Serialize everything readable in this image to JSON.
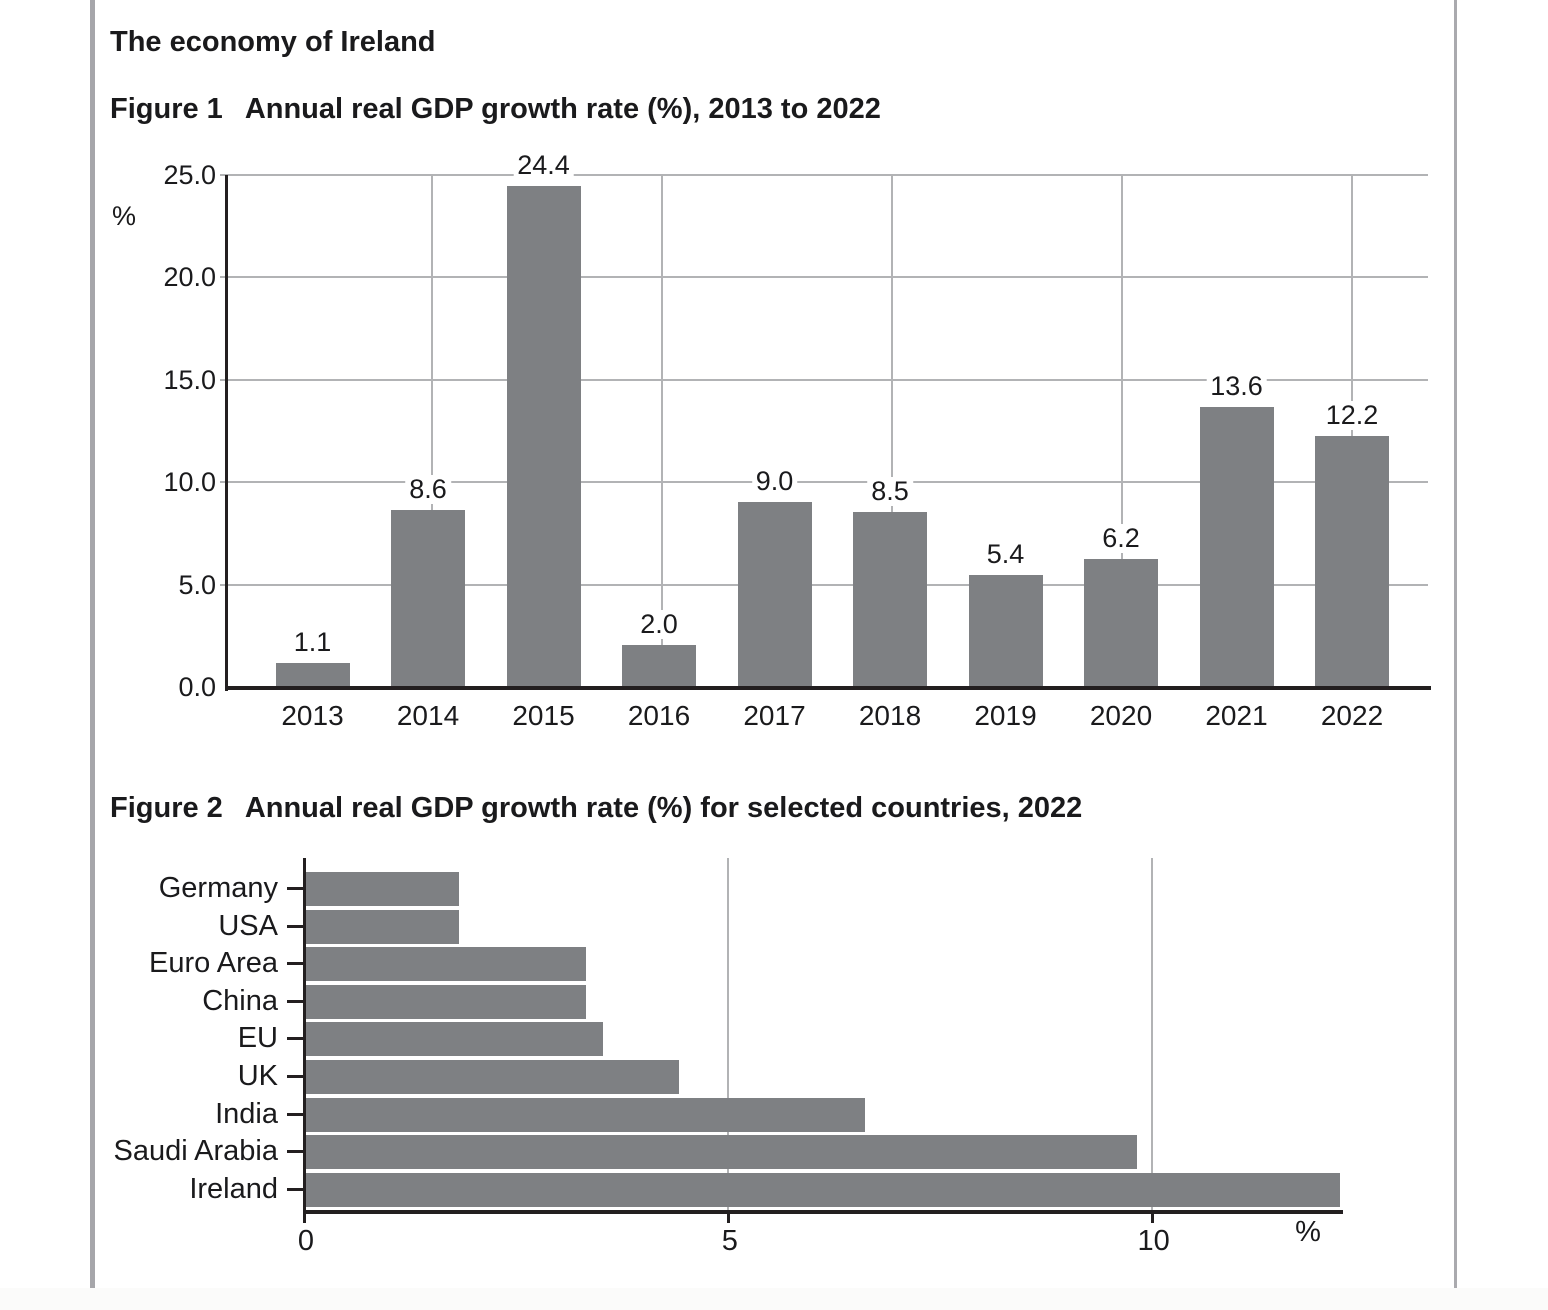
{
  "page": {
    "heading": "The economy of Ireland"
  },
  "figure1": {
    "label": "Figure 1",
    "title": "Annual real GDP growth rate (%), 2013 to 2022",
    "y_axis_unit": "%",
    "y_ticks": [
      "25.0",
      "20.0",
      "15.0",
      "10.0",
      "5.0",
      "0.0"
    ]
  },
  "figure2": {
    "label": "Figure 2",
    "title": "Annual real GDP growth rate (%) for selected countries, 2022",
    "x_axis_unit": "%",
    "x_ticks": [
      "0",
      "5",
      "10"
    ]
  },
  "colors": {
    "bar": "#7e8083",
    "gridline": "#b2b3b5",
    "axis": "#231f20",
    "page_rule": "#a6a6aa"
  },
  "chart_data": [
    {
      "type": "bar",
      "orientation": "vertical",
      "title": "Annual real GDP growth rate (%), 2013 to 2022",
      "categories": [
        "2013",
        "2014",
        "2015",
        "2016",
        "2017",
        "2018",
        "2019",
        "2020",
        "2021",
        "2022"
      ],
      "values": [
        1.1,
        8.6,
        24.4,
        2.0,
        9.0,
        8.5,
        5.4,
        6.2,
        13.6,
        12.2
      ],
      "value_labels": [
        "1.1",
        "8.6",
        "24.4",
        "2.0",
        "9.0",
        "8.5",
        "5.4",
        "6.2",
        "13.6",
        "12.2"
      ],
      "ylabel": "%",
      "ylim": [
        0,
        25
      ],
      "ytick_step": 5,
      "grid": true,
      "legend": false
    },
    {
      "type": "bar",
      "orientation": "horizontal",
      "title": "Annual real GDP growth rate (%) for selected countries, 2022",
      "categories": [
        "Germany",
        "USA",
        "Euro Area",
        "China",
        "EU",
        "UK",
        "India",
        "Saudi Arabia",
        "Ireland"
      ],
      "values": [
        1.8,
        1.8,
        3.3,
        3.3,
        3.5,
        4.4,
        6.6,
        9.8,
        12.2
      ],
      "xlabel": "%",
      "xlim": [
        0,
        12.2
      ],
      "xticks": [
        0,
        5,
        10
      ],
      "grid": true,
      "legend": false
    }
  ]
}
